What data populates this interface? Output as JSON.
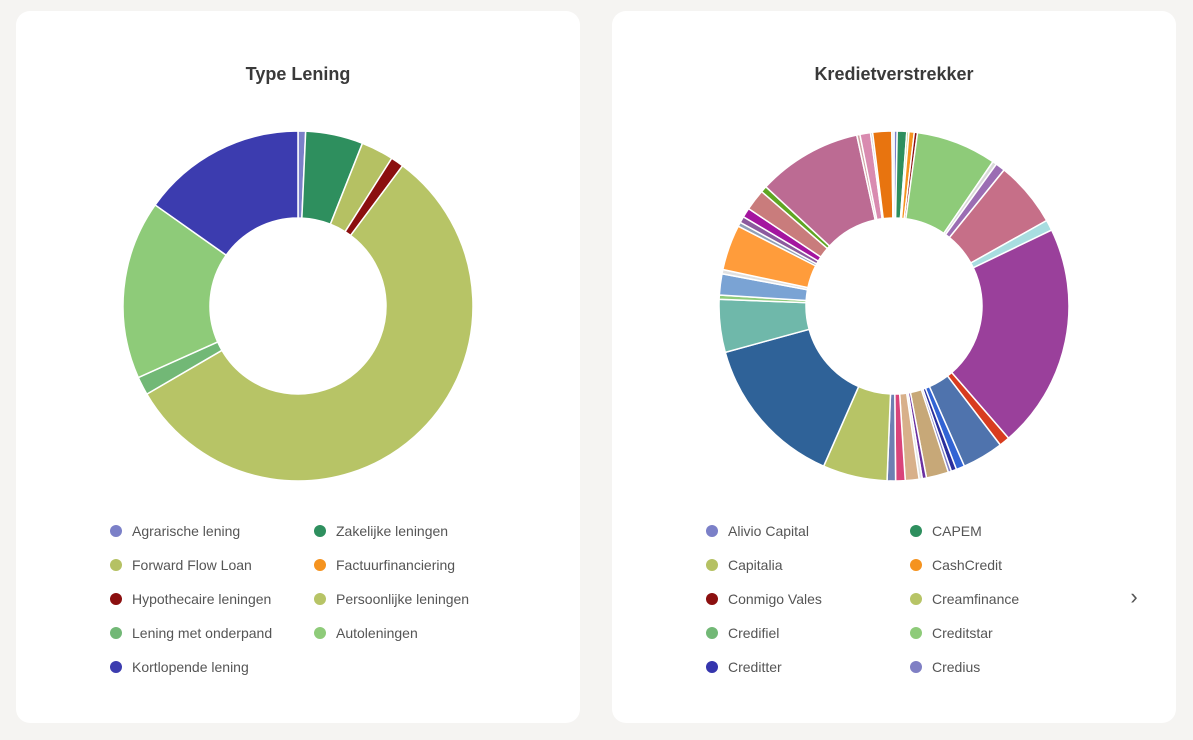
{
  "chart_data": [
    {
      "type": "pie",
      "title": "Type Lening",
      "labels": [
        "Agrarische lening",
        "Zakelijke leningen",
        "Forward Flow Loan",
        "Factuurfinanciering",
        "Hypothecaire leningen",
        "Persoonlijke leningen",
        "Lening met onderpand",
        "Autoleningen",
        "Kortlopende lening"
      ],
      "colors": [
        "#7b80c8",
        "#2e8f5e",
        "#b5c163",
        "#f5931f",
        "#8b0f0f",
        "#b7c466",
        "#72b876",
        "#8ecb79",
        "#3c3caf"
      ],
      "values": [
        0.7,
        5.3,
        3.0,
        0,
        1.2,
        56.4,
        1.7,
        16.5,
        15.2
      ],
      "legend": "bottom"
    },
    {
      "type": "pie",
      "title": "Kredietverstrekker",
      "labels": [
        "Alivio Capital",
        "CAPEM",
        "Capitalia",
        "CashCredit",
        "Conmigo Vales",
        "Creamfinance",
        "Credifiel",
        "Creditstar",
        "Creditter",
        "Credius"
      ],
      "colors": [
        "#7b80c8",
        "#2e8f5e",
        "#b5c163",
        "#f5931f",
        "#8b0f0f",
        "#b7c466",
        "#72b876",
        "#8ecb79",
        "#3535ad",
        "#7f7fc4"
      ],
      "legend": "bottom",
      "slices": [
        {
          "value": 0.3,
          "color": "#7b80c8"
        },
        {
          "value": 0.9,
          "color": "#2e8f5e"
        },
        {
          "value": 0.2,
          "color": "#b5c163"
        },
        {
          "value": 0.5,
          "color": "#f5931f"
        },
        {
          "value": 0.3,
          "color": "#8b0f0f"
        },
        {
          "value": 7.6,
          "color": "#8ecb79"
        },
        {
          "value": 0.4,
          "color": "#d9d9d9"
        },
        {
          "value": 0.9,
          "color": "#9b6db3"
        },
        {
          "value": 6.2,
          "color": "#c66f88"
        },
        {
          "value": 1.0,
          "color": "#a8dde0"
        },
        {
          "value": 21.3,
          "color": "#9a409b"
        },
        {
          "value": 1.0,
          "color": "#d83c1f"
        },
        {
          "value": 3.9,
          "color": "#4f73ad"
        },
        {
          "value": 0.8,
          "color": "#3264d4"
        },
        {
          "value": 0.5,
          "color": "#2a2f9e"
        },
        {
          "value": 0.3,
          "color": "#7f7fc4"
        },
        {
          "value": 2.1,
          "color": "#c7a878"
        },
        {
          "value": 0.4,
          "color": "#6a2fa0"
        },
        {
          "value": 0.3,
          "color": "#e3e3e3"
        },
        {
          "value": 1.3,
          "color": "#d8b08a"
        },
        {
          "value": 0.9,
          "color": "#d9447a"
        },
        {
          "value": 0.8,
          "color": "#6e7fb2"
        },
        {
          "value": 6.1,
          "color": "#b7c466"
        },
        {
          "value": 14.5,
          "color": "#2f6298"
        },
        {
          "value": 5.0,
          "color": "#6fb8aa"
        },
        {
          "value": 0.4,
          "color": "#8ecb79"
        },
        {
          "value": 2.0,
          "color": "#7aa3d4"
        },
        {
          "value": 0.4,
          "color": "#e0e0e0"
        },
        {
          "value": 4.3,
          "color": "#ff9c3b"
        },
        {
          "value": 0.4,
          "color": "#90a0b8"
        },
        {
          "value": 0.6,
          "color": "#8b5a9e"
        },
        {
          "value": 0.9,
          "color": "#a4159f"
        },
        {
          "value": 2.0,
          "color": "#c97c7c"
        },
        {
          "value": 0.6,
          "color": "#5fa622"
        },
        {
          "value": 9.9,
          "color": "#bc6b93"
        },
        {
          "value": 0.3,
          "color": "#cfa3a3"
        },
        {
          "value": 1.0,
          "color": "#d98bb0"
        },
        {
          "value": 0.2,
          "color": "#c0c0c0"
        },
        {
          "value": 1.8,
          "color": "#e8740f"
        },
        {
          "value": 0.2,
          "color": "#e0e0e0"
        }
      ]
    }
  ]
}
